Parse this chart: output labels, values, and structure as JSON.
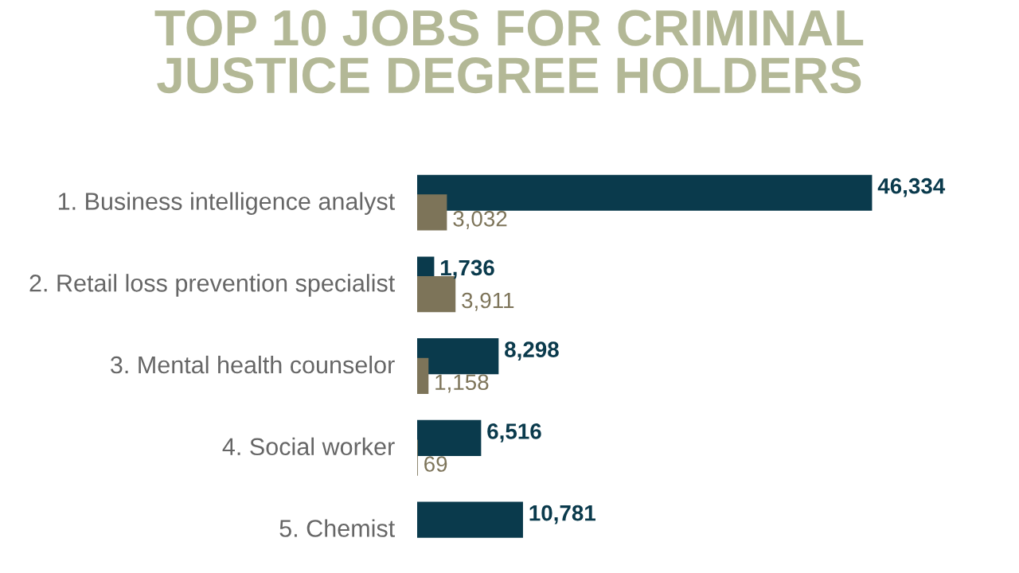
{
  "chart_data": {
    "type": "bar",
    "orientation": "horizontal",
    "title": "TOP 10 JOBS FOR CRIMINAL\nJUSTICE DEGREE HOLDERS",
    "categories": [
      "1. Business intelligence analyst",
      "2. Retail loss prevention specialist",
      "3. Mental health counselor",
      "4. Social worker",
      "5. Chemist"
    ],
    "series": [
      {
        "color": "#0a3a4c",
        "values": [
          46334,
          1736,
          8298,
          6516,
          10781
        ],
        "value_labels": [
          "46,334",
          "1,736",
          "8,298",
          "6,516",
          "10,781"
        ]
      },
      {
        "color": "#7d7459",
        "values": [
          3032,
          3911,
          1158,
          69,
          null
        ],
        "value_labels": [
          "3,032",
          "3,911",
          "1,158",
          "69",
          null
        ]
      }
    ],
    "grid": false,
    "legend": false
  }
}
